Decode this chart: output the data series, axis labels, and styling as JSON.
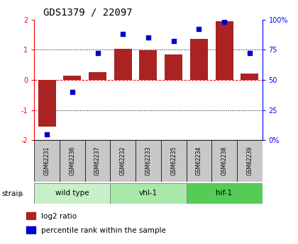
{
  "title": "GDS1379 / 22097",
  "samples": [
    "GSM62231",
    "GSM62236",
    "GSM62237",
    "GSM62232",
    "GSM62233",
    "GSM62235",
    "GSM62234",
    "GSM62238",
    "GSM62239"
  ],
  "log2_ratio": [
    -1.55,
    0.15,
    0.25,
    1.02,
    0.98,
    0.85,
    1.35,
    1.95,
    0.22
  ],
  "percentile": [
    5,
    40,
    72,
    88,
    85,
    82,
    92,
    98,
    72
  ],
  "groups": [
    {
      "name": "wild type",
      "indices": [
        0,
        1,
        2
      ],
      "color": "#c8f0c8"
    },
    {
      "name": "vhl-1",
      "indices": [
        3,
        4,
        5
      ],
      "color": "#a8e8a8"
    },
    {
      "name": "hif-1",
      "indices": [
        6,
        7,
        8
      ],
      "color": "#55cc55"
    }
  ],
  "bar_color": "#aa2222",
  "dot_color": "#0000cc",
  "ylim": [
    -2,
    2
  ],
  "y2lim": [
    0,
    100
  ],
  "yticks_left": [
    -2,
    -1,
    0,
    1,
    2
  ],
  "yticks_right": [
    0,
    25,
    50,
    75,
    100
  ],
  "left_tick_labels": [
    "-2",
    "-1",
    "0",
    "1",
    "2"
  ],
  "right_tick_labels": [
    "0%",
    "25",
    "50",
    "75",
    "100%"
  ],
  "hlines_dotted": [
    -1,
    1
  ],
  "legend_items": [
    {
      "label": "log2 ratio",
      "color": "#aa2222"
    },
    {
      "label": "percentile rank within the sample",
      "color": "#0000cc"
    }
  ],
  "bar_width": 0.7,
  "label_box_color": "#c8c8c8"
}
